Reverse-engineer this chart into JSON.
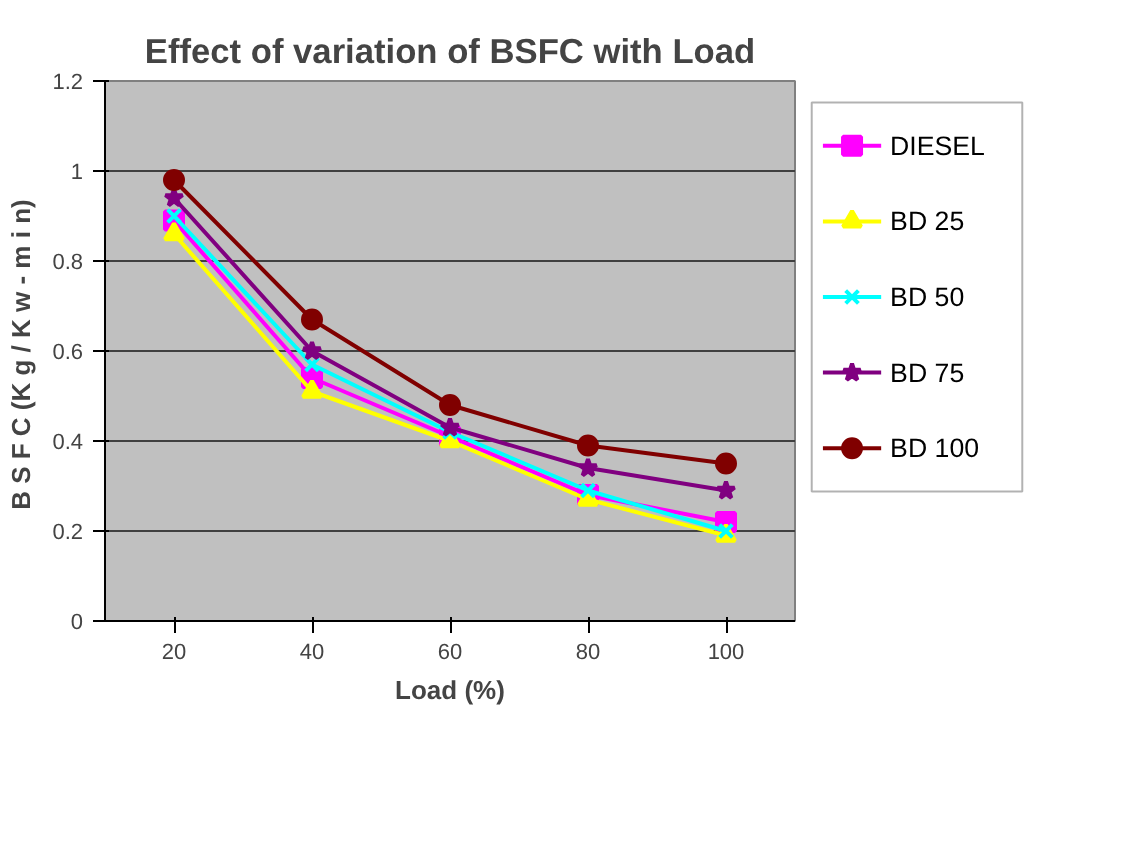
{
  "chart_data": {
    "type": "line",
    "title": "Effect of variation of BSFC with Load",
    "xlabel": "Load (%)",
    "ylabel": "B S F C  (K g / K w - m i n)",
    "categories": [
      "20",
      "40",
      "60",
      "80",
      "100"
    ],
    "series": [
      {
        "name": "DIESEL",
        "color": "#ff00ff",
        "marker": "square",
        "values": [
          0.89,
          0.54,
          0.41,
          0.28,
          0.22
        ]
      },
      {
        "name": "BD 25",
        "color": "#ffff00",
        "marker": "triangle",
        "values": [
          0.86,
          0.51,
          0.4,
          0.27,
          0.19
        ]
      },
      {
        "name": "BD 50",
        "color": "#00ffff",
        "marker": "x",
        "values": [
          0.9,
          0.57,
          0.42,
          0.29,
          0.2
        ]
      },
      {
        "name": "BD 75",
        "color": "#800080",
        "marker": "star",
        "values": [
          0.94,
          0.6,
          0.43,
          0.34,
          0.29
        ]
      },
      {
        "name": "BD 100",
        "color": "#800000",
        "marker": "circle",
        "values": [
          0.98,
          0.67,
          0.48,
          0.39,
          0.35
        ]
      }
    ],
    "ylim": [
      0,
      1.2
    ],
    "yticks": [
      0,
      0.2,
      0.4,
      0.6,
      0.8,
      1,
      1.2
    ],
    "grid": "y",
    "legend": "right"
  }
}
